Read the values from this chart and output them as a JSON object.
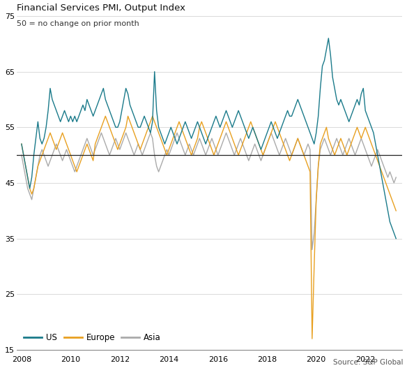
{
  "title": "Financial Services PMI, Output Index",
  "subtitle": "50 = no change on prior month",
  "source": "Source: S&P Global",
  "colors": {
    "US": "#1a7a8a",
    "Europe": "#e8a020",
    "Asia": "#aaaaaa"
  },
  "reference_line": 50,
  "ylim": [
    15,
    77
  ],
  "yticks": [
    15,
    25,
    35,
    45,
    55,
    65,
    75
  ],
  "xticks": [
    2008,
    2010,
    2012,
    2014,
    2016,
    2018,
    2020,
    2022
  ],
  "background": "#ffffff",
  "grid_color": "#cccccc",
  "us_data": [
    52,
    50,
    48,
    46,
    44,
    46,
    50,
    53,
    56,
    53,
    52,
    53,
    55,
    58,
    62,
    60,
    59,
    58,
    57,
    56,
    57,
    58,
    57,
    56,
    57,
    56,
    57,
    56,
    57,
    58,
    59,
    58,
    60,
    59,
    58,
    57,
    58,
    59,
    60,
    61,
    62,
    60,
    59,
    58,
    57,
    56,
    55,
    55,
    56,
    58,
    60,
    62,
    61,
    59,
    58,
    57,
    56,
    55,
    55,
    56,
    57,
    56,
    55,
    54,
    56,
    65,
    58,
    55,
    54,
    53,
    52,
    53,
    54,
    55,
    54,
    53,
    52,
    53,
    54,
    55,
    56,
    55,
    54,
    53,
    54,
    55,
    56,
    55,
    54,
    53,
    52,
    53,
    54,
    55,
    56,
    57,
    56,
    55,
    56,
    57,
    58,
    57,
    56,
    55,
    56,
    57,
    58,
    57,
    56,
    55,
    54,
    53,
    54,
    55,
    54,
    53,
    52,
    51,
    52,
    53,
    54,
    55,
    56,
    55,
    54,
    53,
    54,
    55,
    56,
    57,
    58,
    57,
    57,
    58,
    59,
    60,
    59,
    58,
    57,
    56,
    55,
    54,
    53,
    52,
    54,
    57,
    62,
    66,
    67,
    69,
    71,
    68,
    64,
    62,
    60,
    59,
    60,
    59,
    58,
    57,
    56,
    57,
    58,
    59,
    60,
    59,
    61,
    62,
    58,
    57,
    56,
    55,
    54,
    52,
    50,
    48,
    46,
    44,
    42,
    40,
    38,
    37,
    36,
    35
  ],
  "europe_data": [
    52,
    50,
    48,
    46,
    44,
    43,
    44,
    46,
    48,
    49,
    50,
    51,
    52,
    53,
    54,
    53,
    52,
    51,
    52,
    53,
    54,
    53,
    52,
    51,
    50,
    49,
    48,
    47,
    48,
    49,
    50,
    51,
    52,
    51,
    50,
    49,
    52,
    53,
    54,
    55,
    56,
    57,
    56,
    55,
    54,
    53,
    52,
    51,
    52,
    53,
    54,
    55,
    57,
    56,
    55,
    54,
    53,
    52,
    51,
    52,
    53,
    54,
    55,
    56,
    57,
    56,
    55,
    54,
    53,
    52,
    51,
    50,
    51,
    52,
    53,
    54,
    55,
    56,
    55,
    54,
    53,
    52,
    51,
    50,
    51,
    52,
    53,
    55,
    56,
    55,
    54,
    53,
    52,
    51,
    50,
    51,
    52,
    53,
    54,
    55,
    56,
    55,
    54,
    53,
    52,
    51,
    50,
    51,
    52,
    53,
    54,
    55,
    56,
    55,
    54,
    53,
    52,
    51,
    50,
    51,
    52,
    53,
    54,
    55,
    56,
    55,
    54,
    53,
    52,
    51,
    50,
    49,
    50,
    51,
    52,
    53,
    52,
    51,
    50,
    49,
    48,
    47,
    17,
    30,
    42,
    48,
    52,
    53,
    54,
    55,
    53,
    52,
    51,
    50,
    51,
    52,
    53,
    52,
    51,
    50,
    51,
    52,
    53,
    54,
    55,
    54,
    53,
    54,
    55,
    54,
    53,
    52,
    51,
    50,
    49,
    48,
    47,
    46,
    45,
    44,
    43,
    42,
    41,
    40
  ],
  "asia_data": [
    50,
    48,
    46,
    44,
    43,
    42,
    44,
    46,
    48,
    50,
    51,
    50,
    49,
    48,
    49,
    50,
    51,
    52,
    51,
    50,
    49,
    50,
    51,
    50,
    49,
    48,
    47,
    48,
    49,
    50,
    51,
    52,
    53,
    52,
    51,
    50,
    51,
    52,
    53,
    54,
    53,
    52,
    51,
    50,
    51,
    52,
    53,
    52,
    51,
    52,
    53,
    54,
    53,
    52,
    51,
    50,
    51,
    52,
    51,
    50,
    51,
    52,
    53,
    54,
    53,
    50,
    48,
    47,
    48,
    49,
    50,
    51,
    50,
    51,
    52,
    53,
    54,
    53,
    52,
    51,
    50,
    51,
    52,
    51,
    50,
    51,
    52,
    53,
    52,
    51,
    50,
    51,
    52,
    53,
    52,
    51,
    50,
    51,
    52,
    53,
    54,
    53,
    52,
    51,
    50,
    51,
    52,
    53,
    52,
    51,
    50,
    49,
    50,
    51,
    52,
    51,
    50,
    49,
    50,
    51,
    52,
    53,
    54,
    53,
    52,
    51,
    50,
    51,
    52,
    53,
    52,
    51,
    50,
    51,
    52,
    53,
    52,
    51,
    50,
    51,
    52,
    51,
    33,
    36,
    42,
    48,
    51,
    52,
    53,
    52,
    51,
    50,
    51,
    52,
    53,
    52,
    51,
    50,
    51,
    52,
    53,
    52,
    51,
    50,
    51,
    52,
    53,
    52,
    51,
    50,
    49,
    48,
    49,
    50,
    51,
    50,
    49,
    48,
    47,
    46,
    47,
    46,
    45,
    46
  ],
  "start_year": 2008,
  "start_month": 1
}
